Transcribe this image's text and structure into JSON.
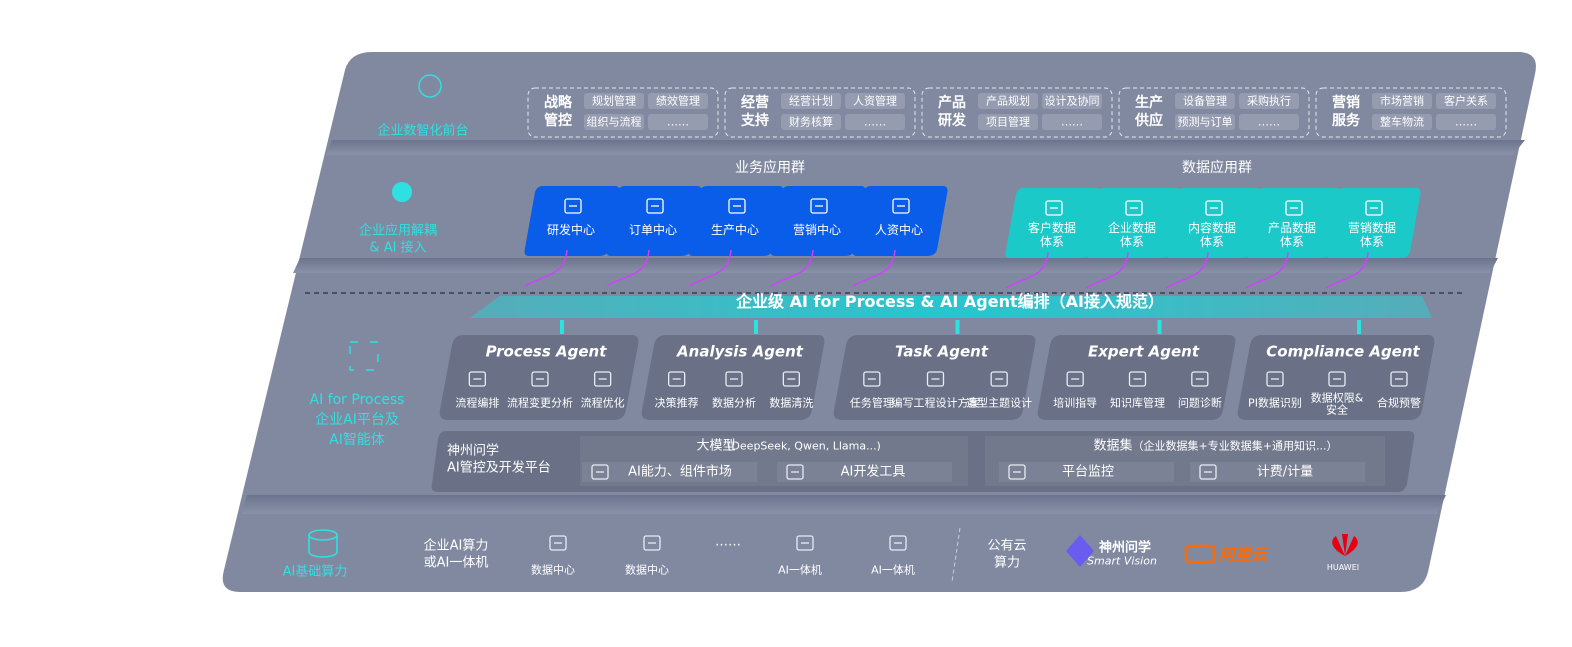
{
  "front": {
    "label": "企业数智化前台",
    "groups": [
      {
        "title": [
          "战略",
          "管控"
        ],
        "items": [
          "规划管理",
          "绩效管理",
          "组织与流程",
          "……"
        ]
      },
      {
        "title": [
          "经营",
          "支持"
        ],
        "items": [
          "经营计划",
          "人资管理",
          "财务核算",
          "……"
        ]
      },
      {
        "title": [
          "产品",
          "研发"
        ],
        "items": [
          "产品规划",
          "设计及协同",
          "项目管理",
          "……"
        ]
      },
      {
        "title": [
          "生产",
          "供应"
        ],
        "items": [
          "设备管理",
          "采购执行",
          "预测与订单",
          "……"
        ]
      },
      {
        "title": [
          "营销",
          "服务"
        ],
        "items": [
          "市场营销",
          "客户关系",
          "整车物流",
          "……"
        ]
      }
    ]
  },
  "apps": {
    "label": [
      "企业应用解耦",
      "& AI 接入"
    ],
    "business": {
      "title": "业务应用群",
      "tiles": [
        [
          "研发中心"
        ],
        [
          "订单中心"
        ],
        [
          "生产中心"
        ],
        [
          "营销中心"
        ],
        [
          "人资中心"
        ]
      ]
    },
    "data": {
      "title": "数据应用群",
      "tiles": [
        [
          "客户数据",
          "体系"
        ],
        [
          "企业数据",
          "体系"
        ],
        [
          "内容数据",
          "体系"
        ],
        [
          "产品数据",
          "体系"
        ],
        [
          "营销数据",
          "体系"
        ]
      ]
    }
  },
  "banner": "企业级 AI for Process & AI Agent编排（AI接入规范）",
  "ai": {
    "label": [
      "AI for Process",
      "企业AI平台及",
      "AI智能体"
    ],
    "agents": [
      {
        "name": "Process Agent",
        "items": [
          [
            "流程编排"
          ],
          [
            "流程变更分析"
          ],
          [
            "流程优化"
          ]
        ]
      },
      {
        "name": "Analysis Agent",
        "items": [
          [
            "决策推荐"
          ],
          [
            "数据分析"
          ],
          [
            "数据清洗"
          ]
        ]
      },
      {
        "name": "Task Agent",
        "items": [
          [
            "任务管理"
          ],
          [
            "编写工程设计方案"
          ],
          [
            "造型主题设计"
          ]
        ]
      },
      {
        "name": "Expert Agent",
        "items": [
          [
            "培训指导"
          ],
          [
            "知识库管理"
          ],
          [
            "问题诊断"
          ]
        ]
      },
      {
        "name": "Compliance Agent",
        "items": [
          [
            "PI数据识别"
          ],
          [
            "数据权限&",
            "安全"
          ],
          [
            "合规预警"
          ]
        ]
      }
    ],
    "platform": {
      "name": [
        "神州问学",
        "AI管控及开发平台"
      ],
      "model": {
        "title": "大模型",
        "note": "(DeepSeek, Qwen, Llama...)",
        "items": [
          "AI能力、组件市场",
          "AI开发工具"
        ]
      },
      "dataset": {
        "title": "数据集",
        "note": "（企业数据集+专业数据集+通用知识...）",
        "items": [
          "平台监控",
          "计费/计量"
        ]
      }
    }
  },
  "infra": {
    "label": "AI基础算力",
    "private": [
      "企业AI算力",
      "或AI一体机"
    ],
    "items": [
      "数据中心",
      "数据中心",
      "……",
      "AI一体机",
      "AI一体机"
    ],
    "public": [
      "公有云",
      "算力"
    ],
    "vendors": {
      "smartvision": [
        "神州问学",
        "Smart Vision"
      ],
      "aliyun": "阿里云",
      "huawei": "HUAWEI"
    }
  }
}
